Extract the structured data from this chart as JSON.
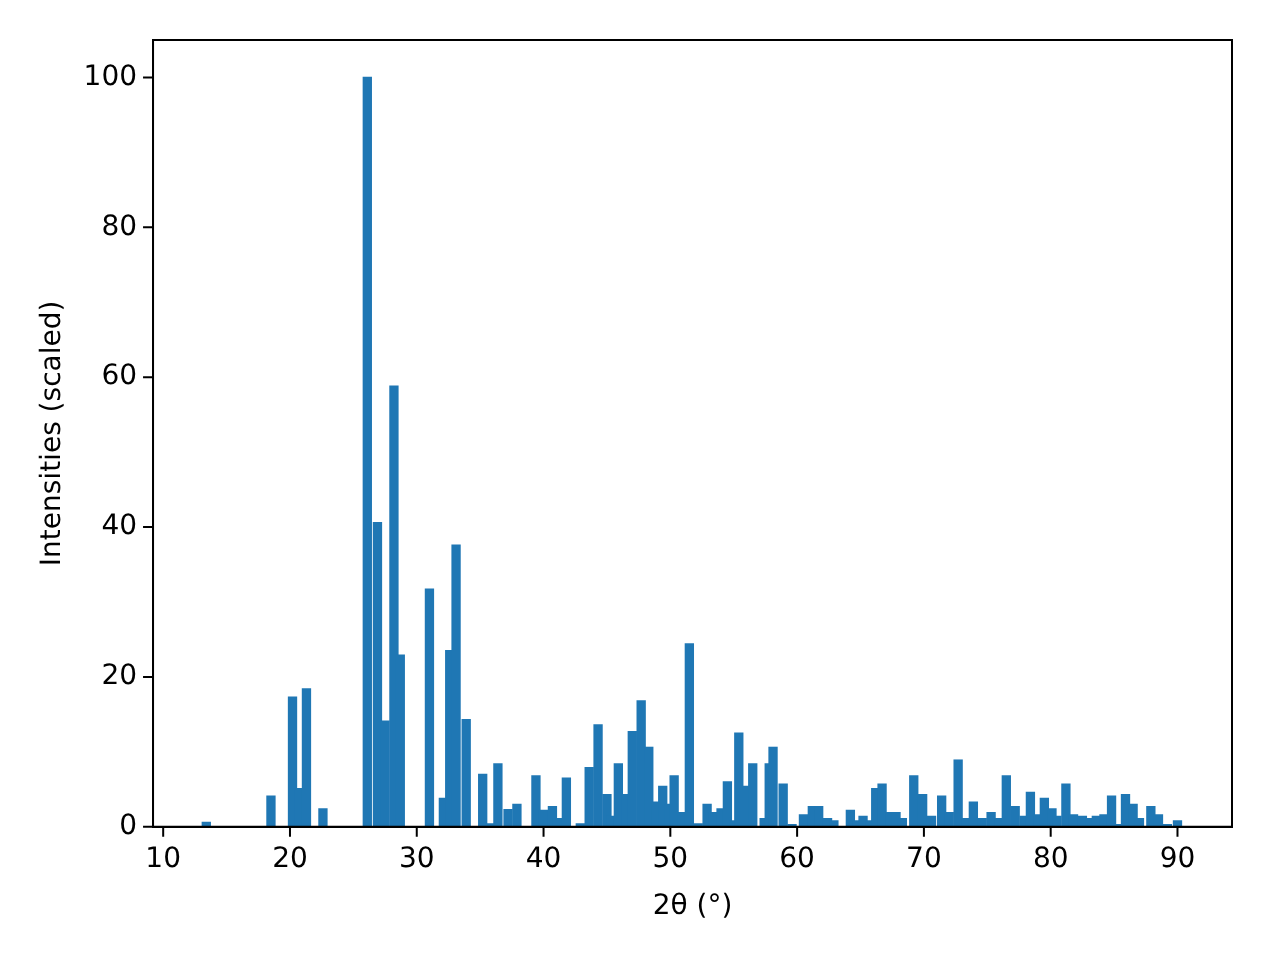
{
  "chart_data": {
    "type": "bar",
    "xlabel": "2θ (°)",
    "ylabel": "Intensities (scaled)",
    "x": [
      13.4,
      18.5,
      20.2,
      20.7,
      21.3,
      22.6,
      26.1,
      26.9,
      27.5,
      28.2,
      28.7,
      31.0,
      32.1,
      32.6,
      33.1,
      33.9,
      35.2,
      35.8,
      36.4,
      37.2,
      37.9,
      39.4,
      40.0,
      40.7,
      41.1,
      41.8,
      42.9,
      43.6,
      44.3,
      45.0,
      45.3,
      45.9,
      46.5,
      47.0,
      47.7,
      48.3,
      48.9,
      49.4,
      49.9,
      50.3,
      50.9,
      51.5,
      52.2,
      52.9,
      53.4,
      54.0,
      54.5,
      55.0,
      55.4,
      56.0,
      56.5,
      57.4,
      57.8,
      58.1,
      58.9,
      59.6,
      60.5,
      61.2,
      61.7,
      62.4,
      62.9,
      64.2,
      64.7,
      65.2,
      65.8,
      66.2,
      66.7,
      67.3,
      67.8,
      68.3,
      69.2,
      69.9,
      70.6,
      71.4,
      72.0,
      72.7,
      73.3,
      73.9,
      74.6,
      75.3,
      75.9,
      76.5,
      77.2,
      77.9,
      78.4,
      79.0,
      79.5,
      80.1,
      80.5,
      81.2,
      81.8,
      82.5,
      83.1,
      83.6,
      84.2,
      84.8,
      85.4,
      85.9,
      86.5,
      87.0,
      87.9,
      88.5,
      89.2,
      90.0
    ],
    "values": [
      0.6,
      4.1,
      17.3,
      5.1,
      18.4,
      2.4,
      100,
      40.6,
      14.1,
      58.8,
      22.9,
      31.7,
      3.8,
      23.5,
      37.6,
      14.3,
      7.0,
      0.4,
      8.4,
      2.3,
      3.0,
      6.8,
      2.2,
      2.7,
      1.1,
      6.5,
      0.4,
      7.9,
      13.6,
      4.3,
      1.4,
      8.4,
      4.3,
      12.7,
      16.8,
      10.6,
      3.3,
      5.4,
      3.0,
      6.8,
      1.9,
      24.4,
      0.4,
      3.0,
      1.9,
      2.4,
      6.0,
      0.8,
      12.5,
      5.4,
      8.4,
      1.1,
      8.4,
      10.6,
      5.7,
      0.3,
      1.6,
      2.7,
      2.7,
      1.1,
      0.8,
      2.2,
      0.8,
      1.4,
      0.8,
      5.1,
      5.7,
      1.9,
      1.9,
      1.1,
      6.8,
      4.3,
      1.4,
      4.1,
      1.9,
      8.9,
      1.1,
      3.3,
      1.1,
      1.9,
      1.1,
      6.8,
      2.7,
      1.4,
      4.6,
      1.6,
      3.8,
      2.4,
      1.4,
      5.7,
      1.6,
      1.4,
      1.1,
      1.4,
      1.6,
      4.1,
      0.3,
      4.3,
      3.0,
      1.1,
      2.7,
      1.6,
      0.3,
      0.8
    ],
    "color": "#1f77b4",
    "xlim": [
      9.2,
      94.3
    ],
    "xticks": [
      10,
      20,
      30,
      40,
      50,
      60,
      70,
      80,
      90
    ],
    "ylim": [
      0,
      105
    ],
    "yticks": [
      0,
      20,
      40,
      60,
      80,
      100
    ],
    "grid": false,
    "legend": false
  }
}
